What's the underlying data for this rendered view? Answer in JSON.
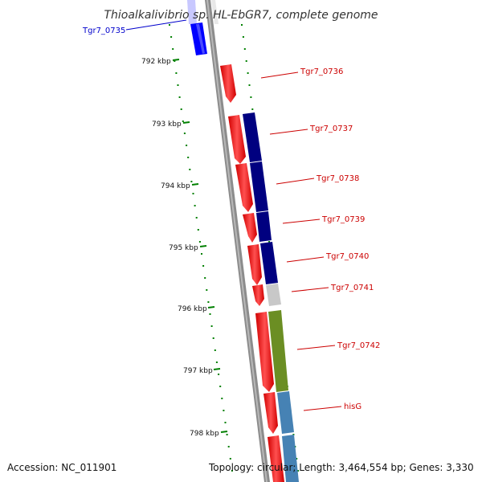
{
  "title": "Thioalkalivibrio sp. HL-EbGR7, complete genome",
  "footer": {
    "accession": "Accession: NC_011901",
    "topology": "Topology: circular; Length: 3,464,554 bp; Genes: 3,330"
  },
  "ticks": [
    "792 kbp",
    "793 kbp",
    "794 kbp",
    "795 kbp",
    "796 kbp",
    "797 kbp",
    "798 kbp"
  ],
  "gene_labels": [
    {
      "name": "Tgr7_0735",
      "color": "#0000cc"
    },
    {
      "name": "Tgr7_0736",
      "color": "#cc0000"
    },
    {
      "name": "Tgr7_0737",
      "color": "#cc0000"
    },
    {
      "name": "Tgr7_0738",
      "color": "#cc0000"
    },
    {
      "name": "Tgr7_0739",
      "color": "#cc0000"
    },
    {
      "name": "Tgr7_0740",
      "color": "#cc0000"
    },
    {
      "name": "Tgr7_0741",
      "color": "#cc0000"
    },
    {
      "name": "Tgr7_0742",
      "color": "#cc0000"
    },
    {
      "name": "hisG",
      "color": "#cc0000"
    }
  ],
  "colors": {
    "cds": "#ff0000",
    "cog_blue": "#0000ff",
    "cog_navy": "#000080",
    "cog_grey": "#c8c8c8",
    "cog_olive": "#6b8e23",
    "cog_steel": "#4682b4",
    "backbone": "#8c8c8c",
    "ticks": "#008000"
  }
}
